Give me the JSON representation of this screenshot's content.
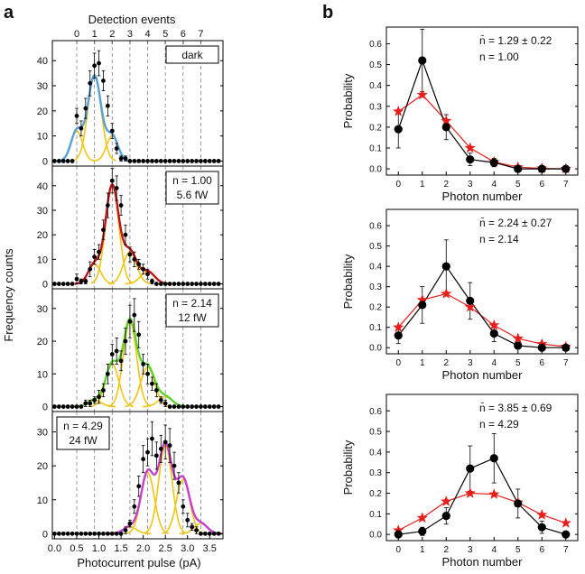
{
  "panel_labels": [
    "a",
    "b"
  ],
  "colors": {
    "axis": "#000000",
    "grid": "#808080",
    "gaussian": "#f2c414",
    "data_points": "#000000",
    "poisson": "#e8201c",
    "fit_dark": "#5aa0d8",
    "fit_1": "#c0141a",
    "fit_2": "#5ed330",
    "fit_3": "#c640d0"
  },
  "chart_data": [
    {
      "id": "a-stack",
      "type": "scatter",
      "title": "",
      "top_axis_label": "Detection events",
      "top_ticks": [
        "0",
        "1",
        "2",
        "3",
        "4",
        "5",
        "6",
        "7"
      ],
      "event_positions": [
        0.5,
        0.9,
        1.3,
        1.7,
        2.1,
        2.5,
        2.9,
        3.3
      ],
      "xlabel": "Photocurrent pulse (pA)",
      "ylabel": "Frequency counts",
      "xlim": [
        -0.05,
        3.8
      ],
      "x_ticks": [
        "0.0",
        "0.5",
        "1.0",
        "1.5",
        "2.0",
        "2.5",
        "3.0",
        "3.5"
      ],
      "subplots": [
        {
          "name": "dark",
          "legend": [
            "dark"
          ],
          "fit_color": "fit_dark",
          "ylim": [
            -2,
            48
          ],
          "y_ticks": [
            0,
            10,
            20,
            30,
            40
          ],
          "x": [
            0.0,
            0.1,
            0.2,
            0.3,
            0.4,
            0.5,
            0.6,
            0.7,
            0.8,
            0.9,
            1.0,
            1.1,
            1.2,
            1.3,
            1.4,
            1.5,
            1.6,
            1.7,
            1.8,
            1.9,
            2.0,
            2.1,
            2.2,
            2.3,
            2.4,
            2.5,
            2.6,
            2.7,
            2.8,
            2.9,
            3.0,
            3.1,
            3.2,
            3.3,
            3.4,
            3.5,
            3.6,
            3.7
          ],
          "y": [
            0,
            0,
            0,
            0,
            0,
            18,
            13,
            21,
            31,
            38,
            39,
            32,
            22,
            12,
            5,
            1,
            1,
            0,
            0,
            0,
            0,
            0,
            0,
            0,
            0,
            0,
            0,
            0,
            0,
            0,
            0,
            0,
            0,
            0,
            0,
            0,
            0,
            0
          ],
          "err": [
            0,
            0,
            0,
            0,
            0,
            3,
            3,
            4,
            5,
            5,
            5,
            4,
            4,
            3,
            2,
            1,
            1,
            0,
            0,
            0,
            0,
            0,
            0,
            0,
            0,
            0,
            0,
            0,
            0,
            0,
            0,
            0,
            0,
            0,
            0,
            0,
            0,
            0
          ],
          "gaussians": [
            [
              0.5,
              12,
              0.13
            ],
            [
              0.9,
              34,
              0.15
            ],
            [
              1.3,
              10,
              0.13
            ]
          ]
        },
        {
          "name": "n1",
          "legend": [
            "n = 1.00",
            "5.6 fW"
          ],
          "fit_color": "fit_1",
          "ylim": [
            -2,
            48
          ],
          "y_ticks": [
            0,
            10,
            20,
            30,
            40
          ],
          "x": [
            0.0,
            0.1,
            0.2,
            0.3,
            0.4,
            0.5,
            0.6,
            0.7,
            0.8,
            0.9,
            1.0,
            1.1,
            1.2,
            1.3,
            1.4,
            1.5,
            1.6,
            1.7,
            1.8,
            1.9,
            2.0,
            2.1,
            2.2,
            2.3,
            2.4,
            2.5,
            2.6,
            2.7,
            2.8,
            2.9,
            3.0,
            3.1,
            3.2,
            3.3,
            3.4,
            3.5,
            3.6,
            3.7
          ],
          "y": [
            0,
            0,
            0,
            0,
            0,
            2,
            1,
            1,
            6,
            11,
            13,
            22,
            32,
            42,
            39,
            32,
            20,
            12,
            10,
            8,
            6,
            4,
            1,
            0,
            0,
            0,
            0,
            0,
            0,
            0,
            0,
            0,
            0,
            0,
            0,
            0,
            0,
            0
          ],
          "err": [
            0,
            0,
            0,
            0,
            0,
            2,
            1,
            1,
            3,
            3,
            3,
            4,
            5,
            5,
            5,
            4,
            4,
            3,
            3,
            2,
            2,
            2,
            1,
            0,
            0,
            0,
            0,
            0,
            0,
            0,
            0,
            0,
            0,
            0,
            0,
            0,
            0,
            0
          ],
          "gaussians": [
            [
              0.9,
              8,
              0.14
            ],
            [
              1.3,
              40,
              0.15
            ],
            [
              1.7,
              13,
              0.15
            ],
            [
              2.1,
              5,
              0.16
            ]
          ]
        },
        {
          "name": "n2",
          "legend": [
            "n = 2.14",
            "12 fW"
          ],
          "fit_color": "fit_2",
          "ylim": [
            -1.5,
            36
          ],
          "y_ticks": [
            0,
            10,
            20,
            30
          ],
          "x": [
            0.0,
            0.1,
            0.2,
            0.3,
            0.4,
            0.5,
            0.6,
            0.7,
            0.8,
            0.9,
            1.0,
            1.1,
            1.2,
            1.3,
            1.4,
            1.5,
            1.6,
            1.7,
            1.8,
            1.9,
            2.0,
            2.1,
            2.2,
            2.3,
            2.4,
            2.5,
            2.6,
            2.7,
            2.8,
            2.9,
            3.0,
            3.1,
            3.2,
            3.3,
            3.4,
            3.5,
            3.6,
            3.7
          ],
          "y": [
            0,
            0,
            0,
            0,
            0,
            0,
            0,
            1,
            1,
            2,
            3,
            5,
            10,
            16,
            17,
            14,
            20,
            26,
            28,
            22,
            13,
            10,
            7,
            5,
            2,
            1,
            0,
            0,
            0,
            0,
            0,
            0,
            0,
            0,
            0,
            0,
            0,
            0
          ],
          "err": [
            0,
            0,
            0,
            0,
            0,
            0,
            0,
            1,
            1,
            1,
            2,
            2,
            3,
            3,
            4,
            3,
            4,
            5,
            5,
            4,
            3,
            3,
            2,
            2,
            1,
            1,
            0,
            0,
            0,
            0,
            0,
            0,
            0,
            0,
            0,
            0,
            0,
            0
          ],
          "gaussians": [
            [
              0.9,
              2,
              0.15
            ],
            [
              1.3,
              13,
              0.15
            ],
            [
              1.7,
              26,
              0.15
            ],
            [
              2.1,
              12,
              0.16
            ],
            [
              2.5,
              3,
              0.16
            ]
          ]
        },
        {
          "name": "n4",
          "legend": [
            "n = 4.29",
            "24 fW"
          ],
          "fit_color": "fit_3",
          "ylim": [
            -1.5,
            36
          ],
          "y_ticks": [
            0,
            10,
            20,
            30
          ],
          "x": [
            0.0,
            0.1,
            0.2,
            0.3,
            0.4,
            0.5,
            0.6,
            0.7,
            0.8,
            0.9,
            1.0,
            1.1,
            1.2,
            1.3,
            1.4,
            1.5,
            1.6,
            1.7,
            1.8,
            1.9,
            2.0,
            2.1,
            2.2,
            2.3,
            2.4,
            2.5,
            2.6,
            2.7,
            2.8,
            2.9,
            3.0,
            3.1,
            3.2,
            3.3,
            3.4,
            3.5,
            3.6,
            3.7
          ],
          "y": [
            0,
            0,
            0,
            0,
            0,
            0,
            0,
            0,
            0,
            0,
            0,
            0,
            0,
            0,
            0,
            0,
            1,
            3,
            8,
            14,
            22,
            24,
            28,
            23,
            25,
            27,
            26,
            20,
            15,
            8,
            4,
            2,
            1,
            0,
            0,
            0,
            0,
            0
          ],
          "err": [
            0,
            0,
            0,
            0,
            0,
            0,
            0,
            0,
            0,
            0,
            0,
            0,
            0,
            0,
            0,
            0,
            1,
            1,
            2,
            3,
            4,
            4,
            5,
            4,
            4,
            5,
            5,
            4,
            3,
            2,
            2,
            1,
            1,
            0,
            0,
            0,
            0,
            0
          ],
          "gaussians": [
            [
              1.7,
              2,
              0.15
            ],
            [
              2.1,
              18,
              0.15
            ],
            [
              2.5,
              26,
              0.15
            ],
            [
              2.9,
              16,
              0.15
            ],
            [
              3.3,
              3,
              0.15
            ]
          ]
        }
      ]
    },
    {
      "id": "b1",
      "type": "line",
      "xlabel": "Photon number",
      "ylabel": "Probability",
      "xlim": [
        -0.5,
        7.5
      ],
      "ylim": [
        -0.03,
        0.68
      ],
      "y_ticks": [
        "0.0",
        "0.1",
        "0.2",
        "0.3",
        "0.4",
        "0.5",
        "0.6"
      ],
      "annotation": [
        "n̄ = 1.29 ± 0.22",
        "n = 1.00"
      ],
      "series": [
        {
          "name": "measured",
          "x": [
            0,
            1,
            2,
            3,
            4,
            5,
            6,
            7
          ],
          "values": [
            0.19,
            0.52,
            0.2,
            0.045,
            0.03,
            0.0,
            0.0,
            0.0
          ],
          "err": [
            0.09,
            0.15,
            0.06,
            0.03,
            0.02,
            0.005,
            0.005,
            0.005
          ]
        },
        {
          "name": "poisson",
          "x": [
            0,
            1,
            2,
            3,
            4,
            5,
            6,
            7
          ],
          "values": [
            0.275,
            0.355,
            0.23,
            0.1,
            0.033,
            0.008,
            0.002,
            0.0
          ]
        }
      ]
    },
    {
      "id": "b2",
      "type": "line",
      "xlabel": "Photon number",
      "ylabel": "Probability",
      "xlim": [
        -0.5,
        7.5
      ],
      "ylim": [
        -0.03,
        0.68
      ],
      "y_ticks": [
        "0.0",
        "0.1",
        "0.2",
        "0.3",
        "0.4",
        "0.5",
        "0.6"
      ],
      "annotation": [
        "n̄ = 2.24 ± 0.27",
        "n = 2.14"
      ],
      "series": [
        {
          "name": "measured",
          "x": [
            0,
            1,
            2,
            3,
            4,
            5,
            6,
            7
          ],
          "values": [
            0.06,
            0.21,
            0.4,
            0.23,
            0.07,
            0.01,
            0.0,
            0.0
          ],
          "err": [
            0.04,
            0.09,
            0.13,
            0.09,
            0.04,
            0.01,
            0.01,
            0.005
          ]
        },
        {
          "name": "poisson",
          "x": [
            0,
            1,
            2,
            3,
            4,
            5,
            6,
            7
          ],
          "values": [
            0.1,
            0.235,
            0.265,
            0.2,
            0.11,
            0.045,
            0.018,
            0.005
          ]
        }
      ]
    },
    {
      "id": "b3",
      "type": "line",
      "xlabel": "Photon number",
      "ylabel": "Probability",
      "xlim": [
        -0.5,
        7.5
      ],
      "ylim": [
        -0.03,
        0.68
      ],
      "y_ticks": [
        "0.0",
        "0.1",
        "0.2",
        "0.3",
        "0.4",
        "0.5",
        "0.6"
      ],
      "annotation": [
        "n̄ = 3.85 ± 0.69",
        "n = 4.29"
      ],
      "series": [
        {
          "name": "measured",
          "x": [
            0,
            1,
            2,
            3,
            4,
            5,
            6,
            7
          ],
          "values": [
            0.0,
            0.015,
            0.09,
            0.32,
            0.37,
            0.15,
            0.035,
            0.0
          ],
          "err": [
            0.005,
            0.02,
            0.04,
            0.11,
            0.12,
            0.07,
            0.03,
            0.01
          ]
        },
        {
          "name": "poisson",
          "x": [
            0,
            1,
            2,
            3,
            4,
            5,
            6,
            7
          ],
          "values": [
            0.02,
            0.08,
            0.16,
            0.2,
            0.195,
            0.155,
            0.095,
            0.055
          ]
        }
      ]
    }
  ]
}
